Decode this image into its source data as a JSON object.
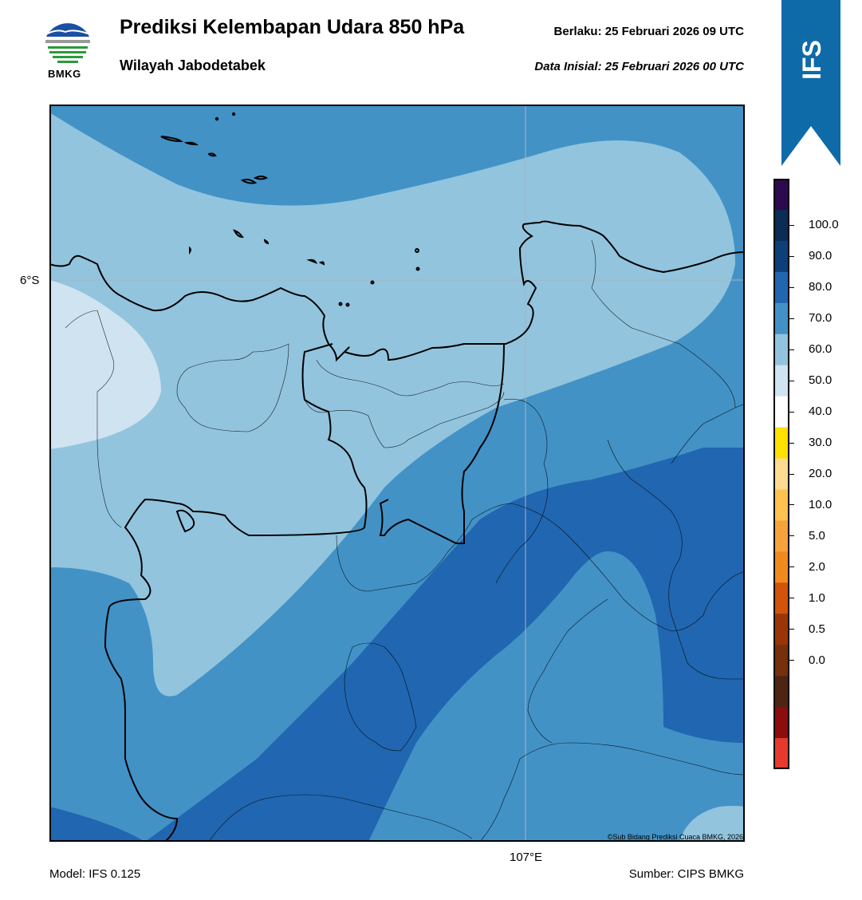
{
  "header": {
    "title": "Prediksi Kelembapan Udara 850 hPa",
    "subtitle": "Wilayah Jabodetabek",
    "valid_label": "Berlaku:  25 Februari 2026 09 UTC",
    "init_label": "Data Inisial:  25 Februari 2026 00 UTC"
  },
  "logo": {
    "text": "BMKG"
  },
  "ribbon": {
    "text": "IFS",
    "color": "#0f6aa8"
  },
  "map": {
    "lat_label": "6°S",
    "lon_label": "107°E",
    "copyright": "©Sub Bidang Prediksi Cuaca BMKG, 2026"
  },
  "footer": {
    "model": "Model: IFS 0.125",
    "source": "Sumber: CIPS BMKG"
  },
  "colorbar": {
    "labels": [
      "100.0",
      "90.0",
      "80.0",
      "70.0",
      "60.0",
      "50.0",
      "40.0",
      "30.0",
      "20.0",
      "10.0",
      "5.0",
      "2.0",
      "1.0",
      "0.5",
      "0.0"
    ],
    "colors": [
      "#2b0a4f",
      "#0a2c55",
      "#0d3f78",
      "#2166b0",
      "#4292c6",
      "#92c4de",
      "#d0e3f0",
      "#ffffff",
      "#ffe000",
      "#ffdb90",
      "#ffc24f",
      "#f5a33a",
      "#f08a1d",
      "#d2530a",
      "#9a3509",
      "#76300c",
      "#4e2414",
      "#8b0d0d",
      "#e8392f"
    ]
  }
}
